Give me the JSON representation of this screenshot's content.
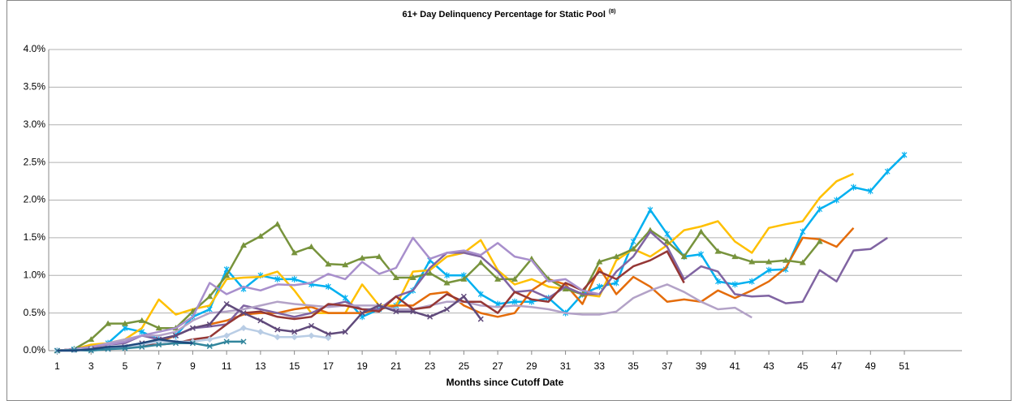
{
  "chart_data": {
    "type": "line",
    "title": "61+ Day Delinquency Percentage for Static Pool",
    "title_superscript": "(8)",
    "x_label": "Months since Cutoff Date",
    "x": [
      1,
      2,
      3,
      4,
      5,
      6,
      7,
      8,
      9,
      10,
      11,
      12,
      13,
      14,
      15,
      16,
      17,
      18,
      19,
      20,
      21,
      22,
      23,
      24,
      25,
      26,
      27,
      28,
      29,
      30,
      31,
      32,
      33,
      34,
      35,
      36,
      37,
      38,
      39,
      40,
      41,
      42,
      43,
      44,
      45,
      46,
      47,
      48,
      49,
      50,
      51
    ],
    "xlim": [
      0.5,
      54.4
    ],
    "xticks": [
      1,
      3,
      5,
      7,
      9,
      11,
      13,
      15,
      17,
      19,
      21,
      23,
      25,
      27,
      29,
      31,
      33,
      35,
      37,
      39,
      41,
      43,
      45,
      47,
      49,
      51
    ],
    "ylim": [
      0,
      4
    ],
    "yticks": [
      {
        "value": 0,
        "label": "0.0%"
      },
      {
        "value": 0.5,
        "label": "0.5%"
      },
      {
        "value": 1,
        "label": "1.0%"
      },
      {
        "value": 1.5,
        "label": "1.5%"
      },
      {
        "value": 2,
        "label": "2.0%"
      },
      {
        "value": 2.5,
        "label": "2.5%"
      },
      {
        "value": 3,
        "label": "3.0%"
      },
      {
        "value": 3.5,
        "label": "3.5%"
      },
      {
        "value": 4,
        "label": "4.0%"
      }
    ],
    "grid": true,
    "series": [
      {
        "color": "#00b0f0",
        "marker": "star",
        "values": [
          0,
          0.02,
          0.05,
          0.1,
          0.3,
          0.25,
          0.15,
          0.2,
          0.45,
          0.55,
          1.08,
          0.82,
          1.0,
          0.95,
          0.95,
          0.88,
          0.85,
          0.7,
          0.45,
          0.55,
          0.6,
          0.8,
          1.2,
          1.0,
          1.0,
          0.75,
          0.62,
          0.65,
          0.65,
          0.7,
          0.5,
          0.75,
          0.85,
          0.9,
          1.45,
          1.87,
          1.55,
          1.25,
          1.28,
          0.92,
          0.88,
          0.92,
          1.07,
          1.08,
          1.58,
          1.88,
          2.0,
          2.17,
          2.12,
          2.38,
          2.6
        ]
      },
      {
        "color": "#ffc000",
        "marker": "none",
        "values": [
          0,
          0.02,
          0.08,
          0.1,
          0.15,
          0.3,
          0.68,
          0.48,
          0.55,
          0.6,
          0.95,
          0.97,
          0.98,
          1.05,
          0.8,
          0.5,
          0.5,
          0.5,
          0.88,
          0.6,
          0.6,
          1.05,
          1.07,
          1.25,
          1.3,
          1.47,
          1.07,
          0.88,
          0.95,
          0.85,
          0.82,
          0.75,
          0.72,
          1.2,
          1.35,
          1.25,
          1.4,
          1.6,
          1.65,
          1.72,
          1.45,
          1.3,
          1.63,
          1.68,
          1.72,
          2.03,
          2.25,
          2.35,
          null,
          null,
          null
        ]
      },
      {
        "color": "#e46c0a",
        "marker": "none",
        "values": [
          0,
          0.02,
          0.03,
          0.05,
          0.05,
          0.1,
          0.12,
          0.2,
          0.3,
          0.35,
          0.4,
          0.48,
          0.5,
          0.5,
          0.55,
          0.58,
          0.5,
          0.5,
          0.5,
          0.55,
          0.6,
          0.6,
          0.75,
          0.78,
          0.6,
          0.5,
          0.45,
          0.5,
          0.8,
          0.95,
          0.88,
          0.62,
          1.1,
          0.75,
          0.98,
          0.85,
          0.65,
          0.68,
          0.65,
          0.8,
          0.7,
          0.8,
          0.92,
          1.1,
          1.5,
          1.48,
          1.38,
          1.63,
          null,
          null,
          null
        ]
      },
      {
        "color": "#77933c",
        "marker": "triangle",
        "values": [
          0,
          0.02,
          0.15,
          0.36,
          0.36,
          0.4,
          0.3,
          0.3,
          0.52,
          0.72,
          1.0,
          1.4,
          1.52,
          1.68,
          1.3,
          1.38,
          1.15,
          1.14,
          1.23,
          1.25,
          0.97,
          0.97,
          1.03,
          0.9,
          0.95,
          1.17,
          0.95,
          0.95,
          1.22,
          0.95,
          0.82,
          0.75,
          1.18,
          1.25,
          1.35,
          1.6,
          1.45,
          1.25,
          1.58,
          1.32,
          1.25,
          1.18,
          1.18,
          1.2,
          1.17,
          1.45,
          null,
          null,
          null,
          null,
          null
        ]
      },
      {
        "color": "#8064a2",
        "marker": "none",
        "values": [
          0,
          0.02,
          0.05,
          0.08,
          0.1,
          0.2,
          0.15,
          0.2,
          0.3,
          0.32,
          0.35,
          0.6,
          0.55,
          0.5,
          0.45,
          0.5,
          0.6,
          0.65,
          0.55,
          0.55,
          0.72,
          0.8,
          1.1,
          1.3,
          1.3,
          1.25,
          1.05,
          0.78,
          0.8,
          0.7,
          0.85,
          0.75,
          0.75,
          1.05,
          1.25,
          1.58,
          1.38,
          0.95,
          1.12,
          1.05,
          0.75,
          0.72,
          0.73,
          0.63,
          0.65,
          1.07,
          0.92,
          1.33,
          1.35,
          1.5,
          null
        ]
      },
      {
        "color": "#b3a2c7",
        "marker": "none",
        "values": [
          0,
          0.02,
          0.05,
          0.1,
          0.15,
          0.2,
          0.2,
          0.25,
          0.4,
          0.5,
          0.52,
          0.55,
          0.6,
          0.65,
          0.62,
          0.6,
          0.58,
          0.6,
          0.6,
          0.6,
          0.55,
          0.55,
          0.6,
          0.65,
          0.65,
          0.6,
          0.58,
          0.6,
          0.58,
          0.55,
          0.5,
          0.48,
          0.48,
          0.52,
          0.7,
          0.8,
          0.88,
          0.78,
          0.65,
          0.55,
          0.57,
          0.44,
          null,
          null,
          null,
          null,
          null,
          null,
          null,
          null,
          null
        ]
      },
      {
        "color": "#953735",
        "marker": "none",
        "values": [
          0,
          0.02,
          0.03,
          0.04,
          0.05,
          0.08,
          0.08,
          0.1,
          0.15,
          0.18,
          0.35,
          0.5,
          0.52,
          0.45,
          0.42,
          0.45,
          0.62,
          0.6,
          0.55,
          0.52,
          0.72,
          0.55,
          0.58,
          0.75,
          0.65,
          0.65,
          0.5,
          0.78,
          0.68,
          0.65,
          0.9,
          0.8,
          1.05,
          0.95,
          1.12,
          1.2,
          1.32,
          0.9,
          null,
          null,
          null,
          null,
          null,
          null,
          null,
          null,
          null,
          null,
          null,
          null,
          null
        ]
      },
      {
        "color": "#a88fcc",
        "marker": "none",
        "values": [
          0,
          0.02,
          0.05,
          0.08,
          0.12,
          0.2,
          0.25,
          0.3,
          0.45,
          0.9,
          0.75,
          0.85,
          0.8,
          0.88,
          0.87,
          0.9,
          1.02,
          0.95,
          1.18,
          1.02,
          1.1,
          1.5,
          1.22,
          1.3,
          1.33,
          1.27,
          1.43,
          1.25,
          1.2,
          0.92,
          0.95,
          0.8,
          0.75,
          null,
          null,
          null,
          null,
          null,
          null,
          null,
          null,
          null,
          null,
          null,
          null,
          null,
          null,
          null,
          null,
          null,
          null
        ]
      },
      {
        "color": "#604a7b",
        "marker": "x",
        "values": [
          0,
          0.01,
          0.02,
          0.03,
          0.05,
          0.1,
          0.15,
          0.2,
          0.3,
          0.35,
          0.62,
          0.5,
          0.4,
          0.28,
          0.25,
          0.33,
          0.22,
          0.25,
          0.5,
          0.6,
          0.52,
          0.52,
          0.45,
          0.55,
          0.72,
          0.42,
          null,
          null,
          null,
          null,
          null,
          null,
          null,
          null,
          null,
          null,
          null,
          null,
          null,
          null,
          null,
          null,
          null,
          null,
          null,
          null,
          null,
          null,
          null,
          null,
          null
        ]
      },
      {
        "color": "#b9cde5",
        "marker": "diamond",
        "values": [
          0,
          0.01,
          0.02,
          0.03,
          0.05,
          0.08,
          0.12,
          0.12,
          0.12,
          0.15,
          0.2,
          0.3,
          0.25,
          0.18,
          0.18,
          0.2,
          0.17,
          null,
          null,
          null,
          null,
          null,
          null,
          null,
          null,
          null,
          null,
          null,
          null,
          null,
          null,
          null,
          null,
          null,
          null,
          null,
          null,
          null,
          null,
          null,
          null,
          null,
          null,
          null,
          null,
          null,
          null,
          null,
          null,
          null,
          null
        ]
      },
      {
        "color": "#31859c",
        "marker": "x",
        "values": [
          0,
          0.01,
          0,
          0.02,
          0.03,
          0.05,
          0.08,
          0.1,
          0.1,
          0.06,
          0.12,
          0.12,
          null,
          null,
          null,
          null,
          null,
          null,
          null,
          null,
          null,
          null,
          null,
          null,
          null,
          null,
          null,
          null,
          null,
          null,
          null,
          null,
          null,
          null,
          null,
          null,
          null,
          null,
          null,
          null,
          null,
          null,
          null,
          null,
          null,
          null,
          null,
          null,
          null,
          null,
          null
        ]
      },
      {
        "color": "#1f497d",
        "marker": "none",
        "values": [
          0,
          0,
          0.02,
          0.05,
          0.06,
          0.1,
          0.15,
          0.12,
          0.1,
          null,
          null,
          null,
          null,
          null,
          null,
          null,
          null,
          null,
          null,
          null,
          null,
          null,
          null,
          null,
          null,
          null,
          null,
          null,
          null,
          null,
          null,
          null,
          null,
          null,
          null,
          null,
          null,
          null,
          null,
          null,
          null,
          null,
          null,
          null,
          null,
          null,
          null,
          null,
          null,
          null,
          null
        ]
      }
    ]
  }
}
